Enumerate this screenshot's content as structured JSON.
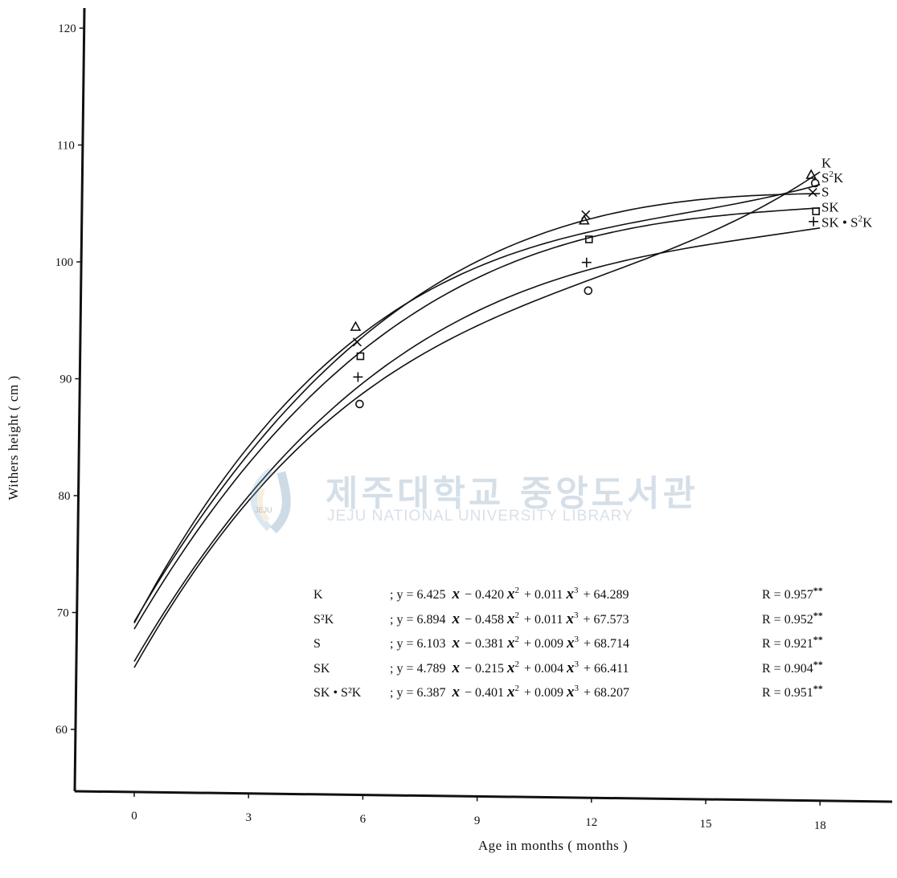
{
  "watermark": {
    "korean": "제주대학교 중앙도서관",
    "english": "JEJU NATIONAL UNIVERSITY  LIBRARY",
    "logo_text": "JEJU"
  },
  "chart_data": {
    "type": "line",
    "xlabel": "Age  in months ( months )",
    "ylabel": "Withers  height  ( cm )",
    "xlim": [
      -1.5,
      19.5
    ],
    "ylim": [
      55.6,
      122
    ],
    "x_ticks": [
      "0",
      "3",
      "6",
      "9",
      "12",
      "15",
      "18"
    ],
    "y_ticks": [
      "60",
      "70",
      "80",
      "90",
      "100",
      "110",
      "120"
    ],
    "grid": false,
    "legend": "equations listed in lower right",
    "series": [
      {
        "name": "K",
        "marker": "o",
        "x": [
          0,
          3,
          6,
          12,
          18
        ],
        "y": [
          65.3,
          79.5,
          88.8,
          98.5,
          107.7
        ],
        "equation": "; y = 6.425",
        "eq_terms": [
          "x",
          "− 0.420",
          "x",
          "2",
          "+ 0.011",
          "x",
          "3",
          "+ 64.289"
        ],
        "r": "R = 0.957",
        "sig": "**"
      },
      {
        "name": "S²K",
        "marker": "△",
        "x": [
          0,
          3,
          6,
          12,
          18
        ],
        "y": [
          69.0,
          84.5,
          93.6,
          102.7,
          106.6
        ],
        "equation": "; y = 6.894",
        "eq_terms": [
          "x",
          "− 0.458",
          "x",
          "2",
          "+ 0.011",
          "x",
          "3",
          "+ 67.573"
        ],
        "r": "R = 0.952",
        "sig": "**"
      },
      {
        "name": "S",
        "marker": "×",
        "x": [
          0,
          3,
          6,
          12,
          18
        ],
        "y": [
          69.0,
          84.2,
          93.0,
          103.9,
          105.8
        ],
        "equation": "; y = 6.103",
        "eq_terms": [
          "x",
          "− 0.381",
          "x",
          "2",
          "+ 0.009",
          "x",
          "3",
          "+ 68.714"
        ],
        "r": "R = 0.921",
        "sig": "**"
      },
      {
        "name": "SK",
        "marker": "□",
        "x": [
          0,
          3,
          6,
          12,
          18
        ],
        "y": [
          68.5,
          83.0,
          92.2,
          102.2,
          104.6
        ],
        "equation": "; y = 4.789",
        "eq_terms": [
          "x",
          "− 0.215",
          "x",
          "2",
          "+ 0.004",
          "x",
          "3",
          "+ 66.411"
        ],
        "r": "R = 0.904",
        "sig": "**"
      },
      {
        "name": "SK • S²K",
        "marker": "+",
        "x": [
          0,
          3,
          6,
          12,
          18
        ],
        "y": [
          65.8,
          80.0,
          89.6,
          99.4,
          102.9
        ],
        "equation": "; y = 6.387",
        "eq_terms": [
          "x",
          "− 0.401",
          "x",
          "2",
          "+ 0.009",
          "x",
          "3",
          "+ 68.207"
        ],
        "r": "R = 0.951",
        "sig": "**"
      }
    ],
    "end_labels": [
      {
        "text": "K",
        "y": 108.5
      },
      {
        "text": "S",
        "sup": "2",
        "text2": "K",
        "y": 107.2
      },
      {
        "text": "S",
        "y": 106.0
      },
      {
        "text": "SK",
        "y": 104.7
      },
      {
        "text": "SK • S",
        "sup": "2",
        "text2": "K",
        "y": 103.4
      }
    ]
  }
}
